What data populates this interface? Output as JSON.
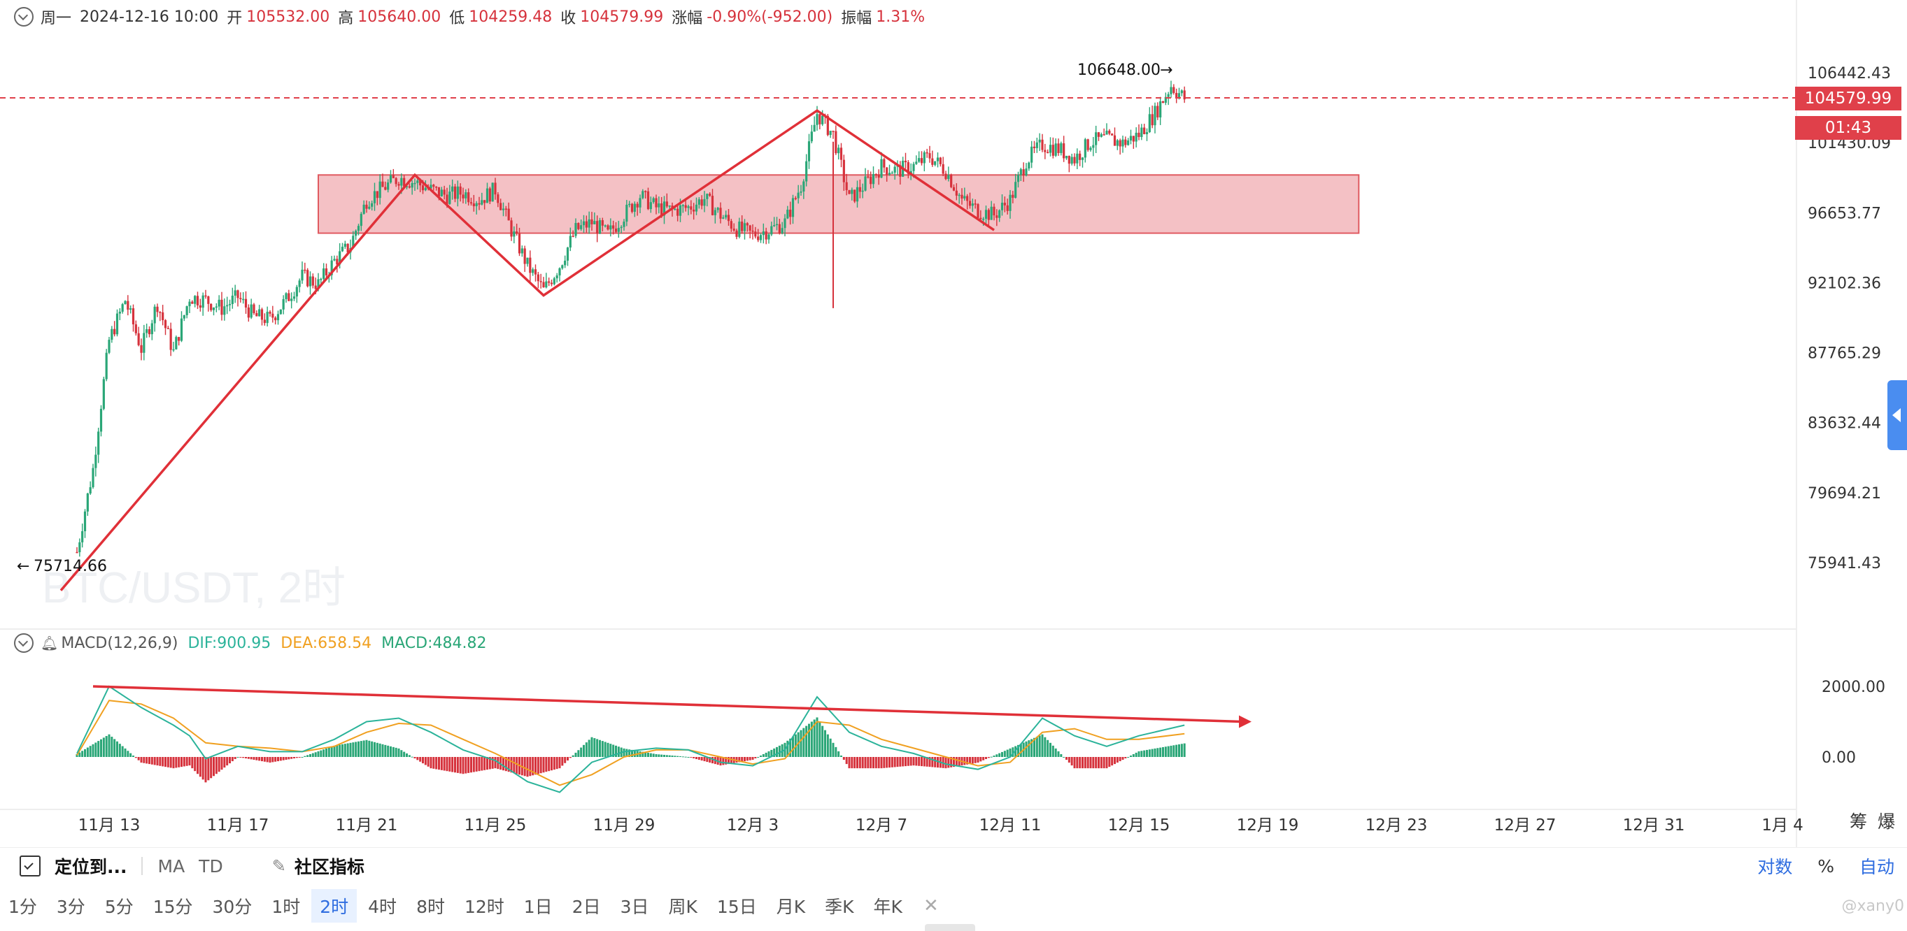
{
  "header": {
    "weekday": "周一",
    "datetime": "2024-12-16 10:00",
    "open_label": "开",
    "open": "105532.00",
    "high_label": "高",
    "high": "105640.00",
    "low_label": "低",
    "low": "104259.48",
    "close_label": "收",
    "close": "104579.99",
    "change_label": "涨幅",
    "change": "-0.90%(-952.00)",
    "amp_label": "振幅",
    "amp": "1.31%"
  },
  "watermark": "BTC/USDT, 2时",
  "macd_header": {
    "name": "MACD(12,26,9)",
    "dif": "DIF:900.95",
    "dea": "DEA:658.54",
    "macd": "MACD:484.82"
  },
  "price_tags": {
    "last": "104579.99",
    "countdown": "01:43",
    "max_annot": "106648.00",
    "min_annot": "75714.66",
    "max_arrow": "→",
    "min_arrow": "←"
  },
  "side_labels": {
    "chip": "筹",
    "burst": "爆"
  },
  "toolbar": {
    "locate": "定位到...",
    "ma": "MA",
    "td": "TD",
    "community": "社区指标",
    "log": "对数",
    "percent": "%",
    "auto": "自动"
  },
  "timeframes": [
    "1分",
    "3分",
    "5分",
    "15分",
    "30分",
    "1时",
    "2时",
    "4时",
    "8时",
    "12时",
    "1日",
    "2日",
    "3日",
    "周K",
    "15日",
    "月K",
    "季K",
    "年K"
  ],
  "active_timeframe": "2时",
  "credit": "@xany0",
  "colors": {
    "up": "#2aa677",
    "down": "#d6323c",
    "dif": "#2bb39a",
    "dea": "#f0a020",
    "zone": "#f2b6bb",
    "accent": "#2f6de0"
  },
  "chart_data": [
    {
      "type": "candlestick",
      "title": "BTC/USDT, 2时",
      "y_ticks": [
        106442.43,
        101430.09,
        96653.77,
        92102.36,
        87765.29,
        83632.44,
        79694.21,
        75941.43
      ],
      "y_tick_labels": [
        "106442.43",
        "101430.09",
        "96653.77",
        "92102.36",
        "87765.29",
        "83632.44",
        "79694.21",
        "75941.43"
      ],
      "y_scale": "log",
      "x_tick_labels": [
        "11月 13",
        "11月 17",
        "11月 21",
        "11月 25",
        "11月 29",
        "12月 3",
        "12月 7",
        "12月 11",
        "12月 15",
        "12月 19",
        "12月 23",
        "12月 27",
        "12月 31",
        "1月 4"
      ],
      "x_tick_dates": [
        "2024-11-13",
        "2024-11-17",
        "2024-11-21",
        "2024-11-25",
        "2024-11-29",
        "2024-12-03",
        "2024-12-07",
        "2024-12-11",
        "2024-12-15",
        "2024-12-19",
        "2024-12-23",
        "2024-12-27",
        "2024-12-31",
        "2025-01-04"
      ],
      "current_price": 104579.99,
      "max": 106648.0,
      "min": 75714.66,
      "price_path": [
        [
          "2024-11-12T00:00",
          76500
        ],
        [
          "2024-11-12T12:00",
          81000
        ],
        [
          "2024-11-13T00:00",
          88500
        ],
        [
          "2024-11-13T12:00",
          91000
        ],
        [
          "2024-11-14T00:00",
          88000
        ],
        [
          "2024-11-14T12:00",
          90800
        ],
        [
          "2024-11-15T00:00",
          87800
        ],
        [
          "2024-11-15T12:00",
          91200
        ],
        [
          "2024-11-16T00:00",
          91000
        ],
        [
          "2024-11-16T12:00",
          90500
        ],
        [
          "2024-11-17T00:00",
          91200
        ],
        [
          "2024-11-17T12:00",
          90000
        ],
        [
          "2024-11-18T00:00",
          89800
        ],
        [
          "2024-11-18T12:00",
          91000
        ],
        [
          "2024-11-19T00:00",
          92500
        ],
        [
          "2024-11-19T12:00",
          92000
        ],
        [
          "2024-11-20T00:00",
          93500
        ],
        [
          "2024-11-20T12:00",
          94500
        ],
        [
          "2024-11-21T00:00",
          97500
        ],
        [
          "2024-11-21T12:00",
          98300
        ],
        [
          "2024-11-22T00:00",
          99000
        ],
        [
          "2024-11-22T12:00",
          98700
        ],
        [
          "2024-11-23T00:00",
          98200
        ],
        [
          "2024-11-23T12:00",
          97800
        ],
        [
          "2024-11-24T00:00",
          98000
        ],
        [
          "2024-11-24T12:00",
          97500
        ],
        [
          "2024-11-25T00:00",
          98200
        ],
        [
          "2024-11-25T12:00",
          95500
        ],
        [
          "2024-11-26T00:00",
          93200
        ],
        [
          "2024-11-26T12:00",
          91600
        ],
        [
          "2024-11-27T00:00",
          93200
        ],
        [
          "2024-11-27T12:00",
          95500
        ],
        [
          "2024-11-28T00:00",
          96000
        ],
        [
          "2024-11-28T12:00",
          95200
        ],
        [
          "2024-11-29T00:00",
          96500
        ],
        [
          "2024-11-29T12:00",
          97800
        ],
        [
          "2024-11-30T00:00",
          97000
        ],
        [
          "2024-11-30T12:00",
          96800
        ],
        [
          "2024-12-01T00:00",
          97000
        ],
        [
          "2024-12-01T12:00",
          97600
        ],
        [
          "2024-12-02T00:00",
          96500
        ],
        [
          "2024-12-02T12:00",
          95600
        ],
        [
          "2024-12-03T00:00",
          95200
        ],
        [
          "2024-12-03T12:00",
          95500
        ],
        [
          "2024-12-04T00:00",
          96000
        ],
        [
          "2024-12-04T12:00",
          98500
        ],
        [
          "2024-12-05T00:00",
          103500
        ],
        [
          "2024-12-05T12:00",
          102000
        ],
        [
          "2024-12-06T00:00",
          97500
        ],
        [
          "2024-12-06T12:00",
          98600
        ],
        [
          "2024-12-07T00:00",
          99800
        ],
        [
          "2024-12-07T12:00",
          99500
        ],
        [
          "2024-12-08T00:00",
          99800
        ],
        [
          "2024-12-08T12:00",
          100500
        ],
        [
          "2024-12-09T00:00",
          99500
        ],
        [
          "2024-12-09T12:00",
          97500
        ],
        [
          "2024-12-10T00:00",
          96800
        ],
        [
          "2024-12-10T12:00",
          96500
        ],
        [
          "2024-12-11T00:00",
          97500
        ],
        [
          "2024-12-11T12:00",
          100200
        ],
        [
          "2024-12-12T00:00",
          101300
        ],
        [
          "2024-12-12T12:00",
          101000
        ],
        [
          "2024-12-13T00:00",
          100300
        ],
        [
          "2024-12-13T12:00",
          101500
        ],
        [
          "2024-12-14T00:00",
          101700
        ],
        [
          "2024-12-14T12:00",
          101400
        ],
        [
          "2024-12-15T00:00",
          102000
        ],
        [
          "2024-12-15T12:00",
          103500
        ],
        [
          "2024-12-16T00:00",
          105500
        ],
        [
          "2024-12-16T10:00",
          104580
        ]
      ],
      "annotations": {
        "zone": {
          "start": "2024-11-19T12:00",
          "end": "2024-12-21T20:00",
          "low": 95300,
          "high": 99200,
          "style": "shaded rectangle"
        },
        "trendline": [
          [
            "2024-11-11T12:00",
            74500
          ],
          [
            "2024-11-22T12:00",
            99200
          ],
          [
            "2024-11-26T12:00",
            91300
          ],
          [
            "2024-12-05T00:00",
            103700
          ],
          [
            "2024-12-10T12:00",
            95500
          ]
        ]
      }
    },
    {
      "type": "macd",
      "title": "MACD(12,26,9)",
      "series_names": [
        "DIF",
        "DEA",
        "MACD"
      ],
      "y_ticks": [
        0,
        2000
      ],
      "y_tick_labels": [
        "0.00",
        "2000.00"
      ],
      "last_values": {
        "DIF": 900.95,
        "DEA": 658.54,
        "MACD": 484.82
      },
      "dif_path": [
        [
          "2024-11-12T00:00",
          100
        ],
        [
          "2024-11-13T00:00",
          2000
        ],
        [
          "2024-11-14T00:00",
          1400
        ],
        [
          "2024-11-15T00:00",
          900
        ],
        [
          "2024-11-15T12:00",
          600
        ],
        [
          "2024-11-16T00:00",
          -50
        ],
        [
          "2024-11-17T00:00",
          300
        ],
        [
          "2024-11-18T00:00",
          150
        ],
        [
          "2024-11-19T00:00",
          150
        ],
        [
          "2024-11-20T00:00",
          500
        ],
        [
          "2024-11-21T00:00",
          1000
        ],
        [
          "2024-11-22T00:00",
          1100
        ],
        [
          "2024-11-23T00:00",
          700
        ],
        [
          "2024-11-24T00:00",
          200
        ],
        [
          "2024-11-25T00:00",
          -100
        ],
        [
          "2024-11-26T00:00",
          -700
        ],
        [
          "2024-11-27T00:00",
          -1000
        ],
        [
          "2024-11-28T00:00",
          -150
        ],
        [
          "2024-11-29T00:00",
          150
        ],
        [
          "2024-11-30T00:00",
          250
        ],
        [
          "2024-12-01T00:00",
          200
        ],
        [
          "2024-12-02T00:00",
          -150
        ],
        [
          "2024-12-03T00:00",
          -250
        ],
        [
          "2024-12-04T00:00",
          200
        ],
        [
          "2024-12-05T00:00",
          1700
        ],
        [
          "2024-12-06T00:00",
          700
        ],
        [
          "2024-12-07T00:00",
          300
        ],
        [
          "2024-12-08T00:00",
          100
        ],
        [
          "2024-12-09T00:00",
          -200
        ],
        [
          "2024-12-10T00:00",
          -350
        ],
        [
          "2024-12-11T00:00",
          0
        ],
        [
          "2024-12-12T00:00",
          1100
        ],
        [
          "2024-12-13T00:00",
          600
        ],
        [
          "2024-12-14T00:00",
          300
        ],
        [
          "2024-12-15T00:00",
          600
        ],
        [
          "2024-12-16T10:00",
          900
        ]
      ],
      "dea_path": [
        [
          "2024-11-12T00:00",
          50
        ],
        [
          "2024-11-13T00:00",
          1600
        ],
        [
          "2024-11-14T00:00",
          1500
        ],
        [
          "2024-11-15T00:00",
          1100
        ],
        [
          "2024-11-16T00:00",
          400
        ],
        [
          "2024-11-17T00:00",
          300
        ],
        [
          "2024-11-18T00:00",
          250
        ],
        [
          "2024-11-19T00:00",
          150
        ],
        [
          "2024-11-20T00:00",
          300
        ],
        [
          "2024-11-21T00:00",
          700
        ],
        [
          "2024-11-22T00:00",
          950
        ],
        [
          "2024-11-23T00:00",
          900
        ],
        [
          "2024-11-24T00:00",
          500
        ],
        [
          "2024-11-25T00:00",
          100
        ],
        [
          "2024-11-26T00:00",
          -350
        ],
        [
          "2024-11-27T00:00",
          -800
        ],
        [
          "2024-11-28T00:00",
          -500
        ],
        [
          "2024-11-29T00:00",
          0
        ],
        [
          "2024-11-30T00:00",
          200
        ],
        [
          "2024-12-01T00:00",
          200
        ],
        [
          "2024-12-02T00:00",
          0
        ],
        [
          "2024-12-03T00:00",
          -200
        ],
        [
          "2024-12-04T00:00",
          -50
        ],
        [
          "2024-12-05T00:00",
          1000
        ],
        [
          "2024-12-06T00:00",
          900
        ],
        [
          "2024-12-07T00:00",
          500
        ],
        [
          "2024-12-08T00:00",
          250
        ],
        [
          "2024-12-09T00:00",
          0
        ],
        [
          "2024-12-10T00:00",
          -250
        ],
        [
          "2024-12-11T00:00",
          -150
        ],
        [
          "2024-12-12T00:00",
          700
        ],
        [
          "2024-12-13T00:00",
          800
        ],
        [
          "2024-12-14T00:00",
          500
        ],
        [
          "2024-12-15T00:00",
          500
        ],
        [
          "2024-12-16T10:00",
          660
        ]
      ],
      "annotation_arrow": {
        "from": [
          "2024-11-12T12:00",
          2000
        ],
        "to": [
          "2024-12-18T12:00",
          1000
        ],
        "style": "red arrow"
      }
    }
  ]
}
